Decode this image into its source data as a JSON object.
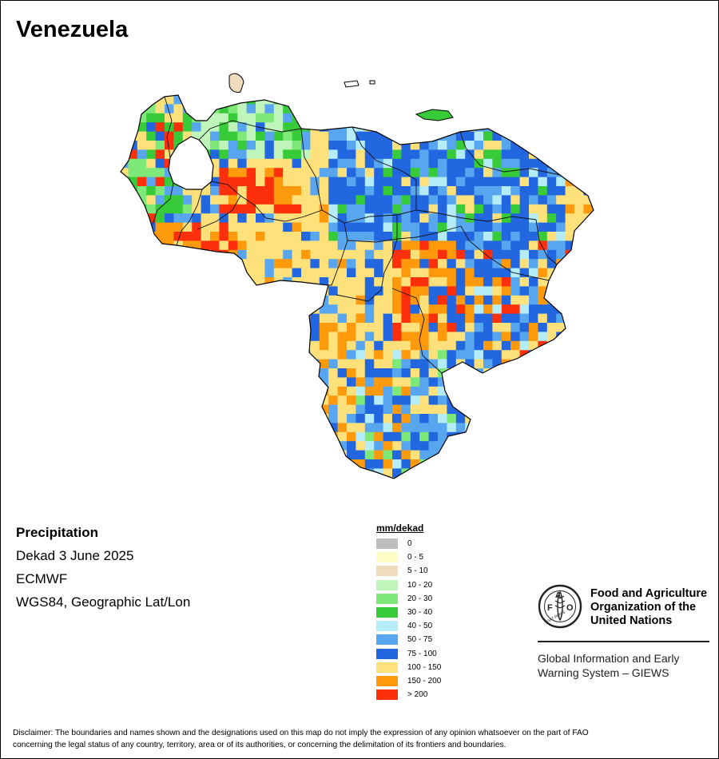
{
  "map": {
    "title": "Venezuela",
    "variable": "Precipitation",
    "period": "Dekad 3 June 2025",
    "source": "ECMWF",
    "projection": "WGS84, Geographic Lat/Lon"
  },
  "legend": {
    "title": "mm/dekad",
    "classes": [
      {
        "label": "0",
        "color": "#bebebe"
      },
      {
        "label": "0 - 5",
        "color": "#fffcc6"
      },
      {
        "label": "5 - 10",
        "color": "#efdcbc"
      },
      {
        "label": "10 - 20",
        "color": "#bff5bb"
      },
      {
        "label": "20 - 30",
        "color": "#7ee879"
      },
      {
        "label": "30 - 40",
        "color": "#38cb39"
      },
      {
        "label": "40 - 50",
        "color": "#b4ecf8"
      },
      {
        "label": "50 - 75",
        "color": "#59a6f0"
      },
      {
        "label": "75 - 100",
        "color": "#2266e0"
      },
      {
        "label": "100 - 150",
        "color": "#ffe17c"
      },
      {
        "label": "150 - 200",
        "color": "#fe9a0c"
      },
      {
        "label": "> 200",
        "color": "#fe300c"
      }
    ]
  },
  "logo": {
    "emblem_text": "FIAT PANIS",
    "org_name": [
      "Food and Agriculture",
      "Organization of the",
      "United Nations"
    ],
    "system": [
      "Global Information and Early",
      "Warning System – GIEWS"
    ]
  },
  "disclaimer": [
    "Disclaimer: The boundaries and names shown and the designations used on this map do not imply the expression of any opinion whatsoever on the part of FAO",
    "concerning the legal status of any country, territory, area or of its authorities, or concerning the delimitation of its frontiers and boundaries."
  ]
}
